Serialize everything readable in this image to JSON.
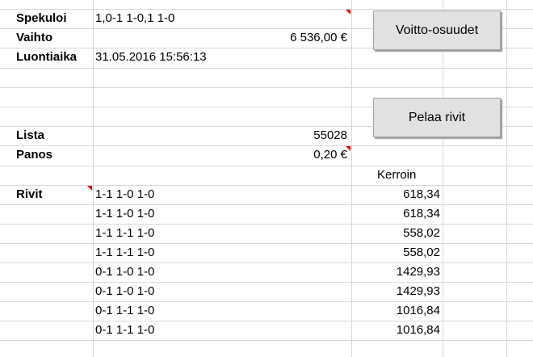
{
  "info": {
    "spekuloi": {
      "label": "Spekuloi",
      "value": "1,0-1 1-0,1 1-0"
    },
    "vaihto": {
      "label": "Vaihto",
      "value": "6 536,00 €"
    },
    "luontiaika": {
      "label": "Luontiaika",
      "value": "31.05.2016 15:56:13"
    },
    "lista": {
      "label": "Lista",
      "value": "55028"
    },
    "panos": {
      "label": "Panos",
      "value": "0,20 €"
    }
  },
  "buttons": {
    "voitto_osuudet": "Voitto-osuudet",
    "pelaa_rivit": "Pelaa rivit"
  },
  "rivit": {
    "label": "Rivit",
    "kerroin_header": "Kerroin",
    "rows": [
      {
        "rivi": "1-1 1-0 1-0",
        "kerroin": "618,34"
      },
      {
        "rivi": "1-1 1-0 1-0",
        "kerroin": "618,34"
      },
      {
        "rivi": "1-1 1-1 1-0",
        "kerroin": "558,02"
      },
      {
        "rivi": "1-1 1-1 1-0",
        "kerroin": "558,02"
      },
      {
        "rivi": "0-1 1-0 1-0",
        "kerroin": "1429,93"
      },
      {
        "rivi": "0-1 1-0 1-0",
        "kerroin": "1429,93"
      },
      {
        "rivi": "0-1 1-1 1-0",
        "kerroin": "1016,84"
      },
      {
        "rivi": "0-1 1-1 1-0",
        "kerroin": "1016,84"
      }
    ]
  },
  "colors": {
    "comment_indicator": "#e00000",
    "gridline": "#d9d9d9",
    "button_face": "#e1e1e1"
  }
}
